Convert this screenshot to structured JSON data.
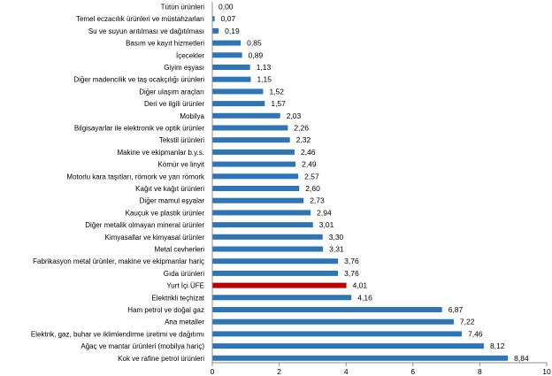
{
  "chart_data": {
    "type": "bar",
    "orientation": "horizontal",
    "title": "",
    "xlabel": "",
    "ylabel": "",
    "xlim": [
      0,
      10
    ],
    "x_ticks": [
      0,
      2,
      4,
      6,
      8,
      10
    ],
    "grid": false,
    "categories": [
      "Tütün ürünleri",
      "Temel eczacılık ürünleri ve müstahzarları",
      "Su ve suyun arıtılması ve dağıtılması",
      "Basım ve kayıt hizmetleri",
      "İçecekler",
      "Giyim eşyası",
      "Diğer madencilik ve taş ocakçılığı ürünleri",
      "Diğer ulaşım araçları",
      "Deri ve ilgili ürünler",
      "Mobilya",
      "Bilgisayarlar ile elektronik ve optik ürünler",
      "Tekstil ürünleri",
      "Makine ve ekipmanlar b.y.s.",
      "Kömür ve linyit",
      "Motorlu kara taşıtları, römork ve yarı römork",
      "Kağıt ve kağıt ürünleri",
      "Diğer mamul eşyalar",
      "Kauçuk ve plastik ürünler",
      "Diğer metalik olmayan mineral ürünler",
      "Kimyasallar ve kimyasal ürünler",
      "Metal cevherleri",
      "Fabrikasyon metal ürünler, makine ve ekipmanlar hariç",
      "Gıda ürünleri",
      "Yurt İçi ÜFE",
      "Elektrikli teçhizat",
      "Ham petrol ve doğal gaz",
      "Ana metaller",
      "Elektrik, gaz, buhar ve iklimlendirme üretimi ve dağıtımı",
      "Ağaç ve mantar ürünleri (mobilya hariç)",
      "Kok ve rafine petrol ürünleri"
    ],
    "values": [
      0.0,
      0.07,
      0.19,
      0.85,
      0.89,
      1.13,
      1.15,
      1.52,
      1.57,
      2.03,
      2.26,
      2.32,
      2.46,
      2.49,
      2.57,
      2.6,
      2.73,
      2.94,
      3.01,
      3.3,
      3.31,
      3.76,
      3.76,
      4.01,
      4.16,
      6.87,
      7.22,
      7.46,
      8.12,
      8.84
    ],
    "value_labels": [
      "0,00",
      "0,07",
      "0,19",
      "0,85",
      "0,89",
      "1,13",
      "1,15",
      "1,52",
      "1,57",
      "2,03",
      "2,26",
      "2,32",
      "2,46",
      "2,49",
      "2,57",
      "2,60",
      "2,73",
      "2,94",
      "3,01",
      "3,30",
      "3,31",
      "3,76",
      "3,76",
      "4,01",
      "4,16",
      "6,87",
      "7,22",
      "7,46",
      "8,12",
      "8,84"
    ],
    "highlight_category": "Yurt İçi ÜFE",
    "colors": {
      "bar": "#2e75b6",
      "highlight": "#c00000",
      "axis": "#8c8c8c",
      "text": "#000000"
    }
  }
}
